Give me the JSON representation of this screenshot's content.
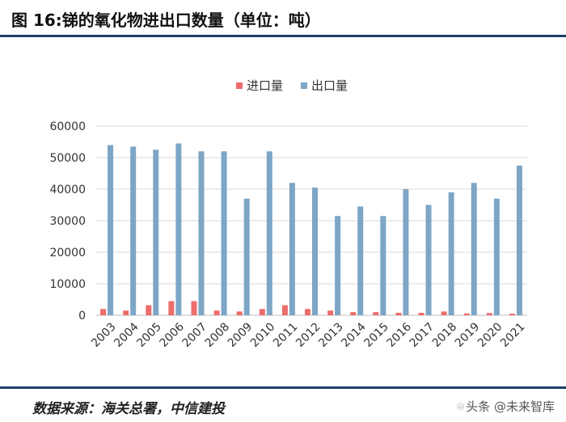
{
  "header": {
    "title": "图 16:锑的氧化物进出口数量（单位：吨）"
  },
  "chart_data": {
    "type": "bar",
    "title": "图 16:锑的氧化物进出口数量（单位：吨）",
    "xlabel": "",
    "ylabel": "",
    "ylim": [
      0,
      60000
    ],
    "yticks": [
      "0",
      "10000",
      "20000",
      "30000",
      "40000",
      "50000",
      "60000"
    ],
    "grid": true,
    "legend_position": "top-center",
    "categories": [
      "2003",
      "2004",
      "2005",
      "2006",
      "2007",
      "2008",
      "2009",
      "2010",
      "2011",
      "2012",
      "2013",
      "2014",
      "2015",
      "2016",
      "2017",
      "2018",
      "2019",
      "2020",
      "2021"
    ],
    "series": [
      {
        "name": "进口量",
        "color": "#ee6c6c",
        "values": [
          2000,
          1500,
          3200,
          4500,
          4500,
          1500,
          1200,
          2000,
          3200,
          2000,
          1500,
          1000,
          1000,
          800,
          800,
          1200,
          600,
          700,
          500
        ]
      },
      {
        "name": "出口量",
        "color": "#7da6c6",
        "values": [
          54000,
          53500,
          52500,
          54500,
          52000,
          52000,
          37000,
          52000,
          42000,
          40500,
          31500,
          34500,
          31500,
          40000,
          35000,
          39000,
          42000,
          37000,
          47500
        ]
      }
    ]
  },
  "footer": {
    "source": "数据来源：海关总署，中信建投",
    "watermark": "头条 @未来智库"
  },
  "icons": {
    "watermark_icon": "wechat-logo-icon"
  }
}
